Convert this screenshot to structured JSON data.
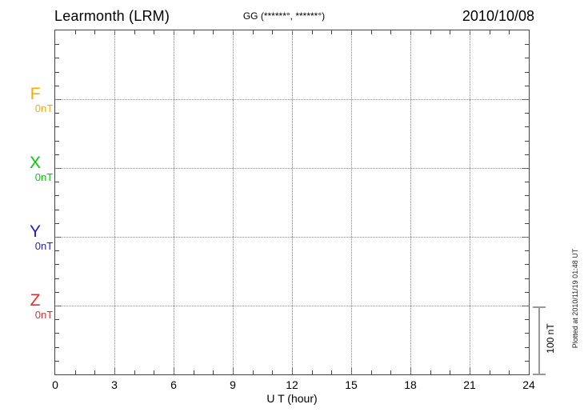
{
  "chart_data": {
    "type": "line",
    "title": "Learmonth (LRM)",
    "coordinates_label": "GG (******°, ******°)",
    "date": "2010/10/08",
    "xlabel": "U T (hour)",
    "xlim": [
      0,
      24
    ],
    "x_ticks": [
      0,
      3,
      6,
      9,
      12,
      15,
      18,
      21,
      24
    ],
    "x_minor_step_hours": 1,
    "y_minor_step_nT": 20,
    "baseline_spacing_nT": 100,
    "grid": "dotted",
    "grid_color": "#8a8a8a",
    "axis_color": "#444444",
    "series": [
      {
        "name": "F",
        "baseline_label": "0nT",
        "color": "#FFAA00",
        "values": []
      },
      {
        "name": "X",
        "baseline_label": "0nT",
        "color": "#00CC00",
        "values": []
      },
      {
        "name": "Y",
        "baseline_label": "0nT",
        "color": "#2222CC",
        "values": []
      },
      {
        "name": "Z",
        "baseline_label": "0nT",
        "color": "#E03030",
        "values": []
      }
    ],
    "scale_bar": {
      "label": "100 nT",
      "span_nT": 100
    },
    "footer_note": "Plotted at 2010/11/19 01:48 UT"
  }
}
